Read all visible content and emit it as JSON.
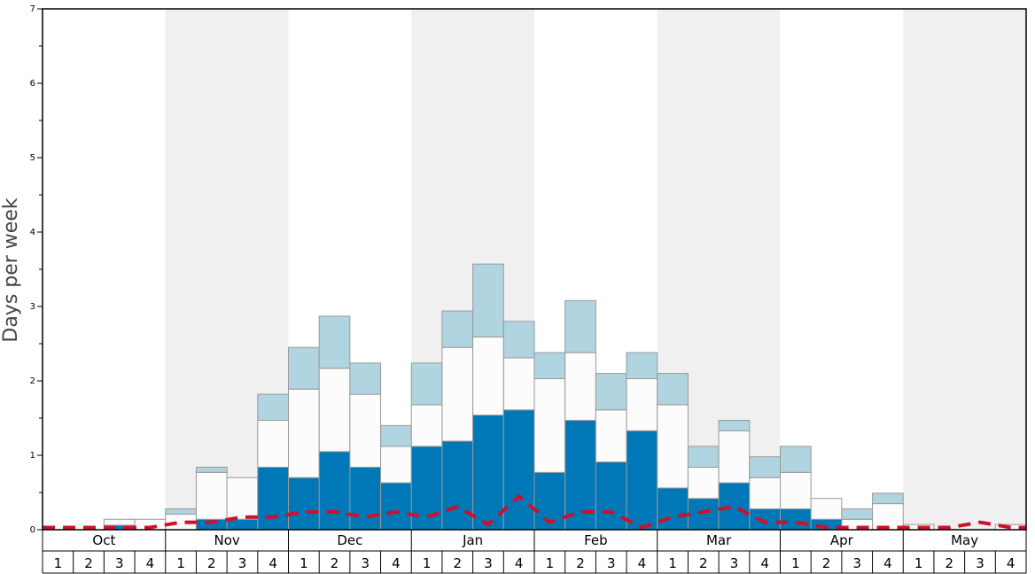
{
  "chart_data": {
    "type": "bar",
    "ylabel": "Days per week",
    "ylim": [
      0,
      7
    ],
    "yticks": [
      "0",
      "1",
      "2",
      "3",
      "4",
      "5",
      "6",
      "7"
    ],
    "months": [
      "Oct",
      "Nov",
      "Dec",
      "Jan",
      "Feb",
      "Mar",
      "Apr",
      "May"
    ],
    "weeks": [
      "1",
      "2",
      "3",
      "4"
    ],
    "series": [
      {
        "name": "dark",
        "color": "#0077b6",
        "values": [
          0,
          0,
          0.06,
          0,
          0,
          0.14,
          0.14,
          0.84,
          0.7,
          1.05,
          0.84,
          0.63,
          1.12,
          1.19,
          1.54,
          1.61,
          0.77,
          1.47,
          0.91,
          1.33,
          0.56,
          0.42,
          0.63,
          0.28,
          0.28,
          0.14,
          0,
          0,
          0,
          0,
          0,
          0
        ]
      },
      {
        "name": "white",
        "color": "#fcfcfc",
        "values": [
          0,
          0,
          0.08,
          0.14,
          0.21,
          0.63,
          0.56,
          0.63,
          1.19,
          1.12,
          0.98,
          0.49,
          0.56,
          1.26,
          1.05,
          0.7,
          1.26,
          0.91,
          0.7,
          0.7,
          1.12,
          0.42,
          0.7,
          0.42,
          0.49,
          0.28,
          0.14,
          0.35,
          0.07,
          0,
          0,
          0.07
        ]
      },
      {
        "name": "light",
        "color": "#b0d4e0",
        "values": [
          0,
          0,
          0,
          0,
          0.07,
          0.07,
          0,
          0.35,
          0.56,
          0.7,
          0.42,
          0.28,
          0.56,
          0.49,
          0.98,
          0.49,
          0.35,
          0.7,
          0.49,
          0.35,
          0.42,
          0.28,
          0.14,
          0.28,
          0.35,
          0,
          0.14,
          0.14,
          0,
          0,
          0,
          0
        ]
      }
    ],
    "dashed_line": {
      "color": "#d0102a",
      "values": [
        0.03,
        0.03,
        0.03,
        0.03,
        0.1,
        0.1,
        0.17,
        0.17,
        0.24,
        0.24,
        0.17,
        0.24,
        0.17,
        0.31,
        0.07,
        0.45,
        0.1,
        0.24,
        0.24,
        0.03,
        0.17,
        0.24,
        0.31,
        0.1,
        0.1,
        0.03,
        0.03,
        0.03,
        0.03,
        0.03,
        0.1,
        0.03
      ]
    },
    "background_bands": {
      "shaded_months": [
        "Nov",
        "Jan",
        "Mar",
        "May"
      ],
      "shade_color": "#f0f0f0"
    },
    "grid": false
  }
}
